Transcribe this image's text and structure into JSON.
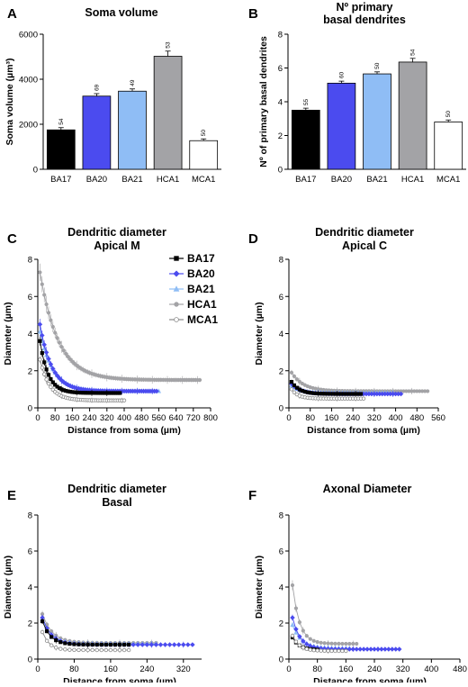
{
  "chart_data": [
    {
      "panel": "A",
      "type": "bar",
      "title": "Soma volume",
      "ylabel": "Soma volume (µm³)",
      "xlabel": "",
      "ylim": [
        0,
        6000
      ],
      "yticks": [
        0,
        2000,
        4000,
        6000
      ],
      "categories": [
        "BA17",
        "BA20",
        "BA21",
        "HCA1",
        "MCA1"
      ],
      "values": [
        1750,
        3250,
        3470,
        5020,
        1270
      ],
      "errors": [
        100,
        110,
        100,
        230,
        80
      ],
      "n_labels": [
        "54",
        "69",
        "49",
        "53",
        "50"
      ],
      "colors": [
        "#000000",
        "#4b4bef",
        "#8fbdf5",
        "#a3a3a6",
        "#ffffff"
      ]
    },
    {
      "panel": "B",
      "type": "bar",
      "title": "Nº primary\nbasal dendrites",
      "ylabel": "Nº  of primary basal dendrites",
      "xlabel": "",
      "ylim": [
        0,
        8
      ],
      "yticks": [
        0,
        2,
        4,
        6,
        8
      ],
      "categories": [
        "BA17",
        "BA20",
        "BA21",
        "HCA1",
        "MCA1"
      ],
      "values": [
        3.5,
        5.1,
        5.65,
        6.35,
        2.8
      ],
      "errors": [
        0.12,
        0.12,
        0.12,
        0.22,
        0.12
      ],
      "n_labels": [
        "55",
        "60",
        "50",
        "54",
        "50"
      ],
      "colors": [
        "#000000",
        "#4b4bef",
        "#8fbdf5",
        "#a3a3a6",
        "#ffffff"
      ]
    },
    {
      "panel": "C",
      "type": "line",
      "title": "Dendritic diameter\nApical M",
      "xlabel": "Distance from soma (µm)",
      "ylabel": "Diameter (µm)",
      "xlim": [
        0,
        800
      ],
      "ylim": [
        0,
        8
      ],
      "xticks": [
        0,
        80,
        160,
        240,
        320,
        400,
        480,
        560,
        640,
        720,
        800
      ],
      "yticks": [
        0,
        2,
        4,
        6,
        8
      ],
      "legend": [
        "BA17",
        "BA20",
        "BA21",
        "HCA1",
        "MCA1"
      ],
      "series": [
        {
          "name": "BA17",
          "end": 380,
          "a": 3.6,
          "k": 38,
          "p": 0.8
        },
        {
          "name": "BA20",
          "end": 550,
          "a": 4.5,
          "k": 55,
          "p": 0.9
        },
        {
          "name": "BA21",
          "end": 560,
          "a": 4.1,
          "k": 60,
          "p": 0.9
        },
        {
          "name": "HCA1",
          "end": 750,
          "a": 7.3,
          "k": 85,
          "p": 1.5
        },
        {
          "name": "MCA1",
          "end": 400,
          "a": 2.6,
          "k": 45,
          "p": 0.4
        }
      ]
    },
    {
      "panel": "D",
      "type": "line",
      "title": "Dendritic diameter\nApical C",
      "xlabel": "Distance from soma (µm)",
      "ylabel": "Diameter (µm)",
      "xlim": [
        0,
        560
      ],
      "ylim": [
        0,
        8
      ],
      "xticks": [
        0,
        80,
        160,
        240,
        320,
        400,
        480,
        560
      ],
      "yticks": [
        0,
        2,
        4,
        6,
        8
      ],
      "series": [
        {
          "name": "BA17",
          "end": 270,
          "a": 1.4,
          "k": 30,
          "p": 0.75
        },
        {
          "name": "BA20",
          "end": 420,
          "a": 1.3,
          "k": 35,
          "p": 0.75
        },
        {
          "name": "BA21",
          "end": 390,
          "a": 1.2,
          "k": 35,
          "p": 0.8
        },
        {
          "name": "HCA1",
          "end": 520,
          "a": 1.9,
          "k": 45,
          "p": 0.9
        },
        {
          "name": "MCA1",
          "end": 280,
          "a": 1.0,
          "k": 25,
          "p": 0.5
        }
      ]
    },
    {
      "panel": "E",
      "type": "line",
      "title": "Dendritic diameter\nBasal",
      "xlabel": "Distance from soma (µm)",
      "ylabel": "Diameter (µm)",
      "xlim": [
        0,
        360
      ],
      "ylim": [
        0,
        8
      ],
      "xticks": [
        0,
        80,
        160,
        240,
        320
      ],
      "yticks": [
        0,
        2,
        4,
        6,
        8
      ],
      "series": [
        {
          "name": "BA17",
          "end": 200,
          "a": 2.1,
          "k": 18,
          "p": 0.8
        },
        {
          "name": "BA20",
          "end": 340,
          "a": 2.3,
          "k": 20,
          "p": 0.8
        },
        {
          "name": "BA21",
          "end": 260,
          "a": 2.2,
          "k": 20,
          "p": 0.85
        },
        {
          "name": "HCA1",
          "end": 260,
          "a": 2.5,
          "k": 22,
          "p": 0.9
        },
        {
          "name": "MCA1",
          "end": 200,
          "a": 1.5,
          "k": 15,
          "p": 0.5
        }
      ]
    },
    {
      "panel": "F",
      "type": "line",
      "title": "Axonal Diameter",
      "xlabel": "Distance from soma (µm)",
      "ylabel": "Diameter (µm)",
      "xlim": [
        0,
        480
      ],
      "ylim": [
        0,
        8
      ],
      "xticks": [
        0,
        80,
        160,
        240,
        320,
        400,
        480
      ],
      "yticks": [
        0,
        2,
        4,
        6,
        8
      ],
      "series": [
        {
          "name": "BA17",
          "end": 80,
          "a": 1.2,
          "k": 20,
          "p": 0.5
        },
        {
          "name": "BA20",
          "end": 310,
          "a": 2.3,
          "k": 22,
          "p": 0.55
        },
        {
          "name": "BA21",
          "end": 170,
          "a": 1.9,
          "k": 25,
          "p": 0.6
        },
        {
          "name": "HCA1",
          "end": 190,
          "a": 4.1,
          "k": 20,
          "p": 0.85
        },
        {
          "name": "MCA1",
          "end": 160,
          "a": 1.3,
          "k": 20,
          "p": 0.45
        }
      ]
    }
  ],
  "series_styles": {
    "BA17": {
      "color": "#000000",
      "fill": "#000000",
      "marker": "square"
    },
    "BA20": {
      "color": "#4b4bef",
      "fill": "#4b4bef",
      "marker": "diamond"
    },
    "BA21": {
      "color": "#8fbdf5",
      "fill": "#8fbdf5",
      "marker": "triangle"
    },
    "HCA1": {
      "color": "#a3a3a6",
      "fill": "#a3a3a6",
      "marker": "circle"
    },
    "MCA1": {
      "color": "#8a8a8a",
      "fill": "#ffffff",
      "marker": "circle-open"
    }
  }
}
